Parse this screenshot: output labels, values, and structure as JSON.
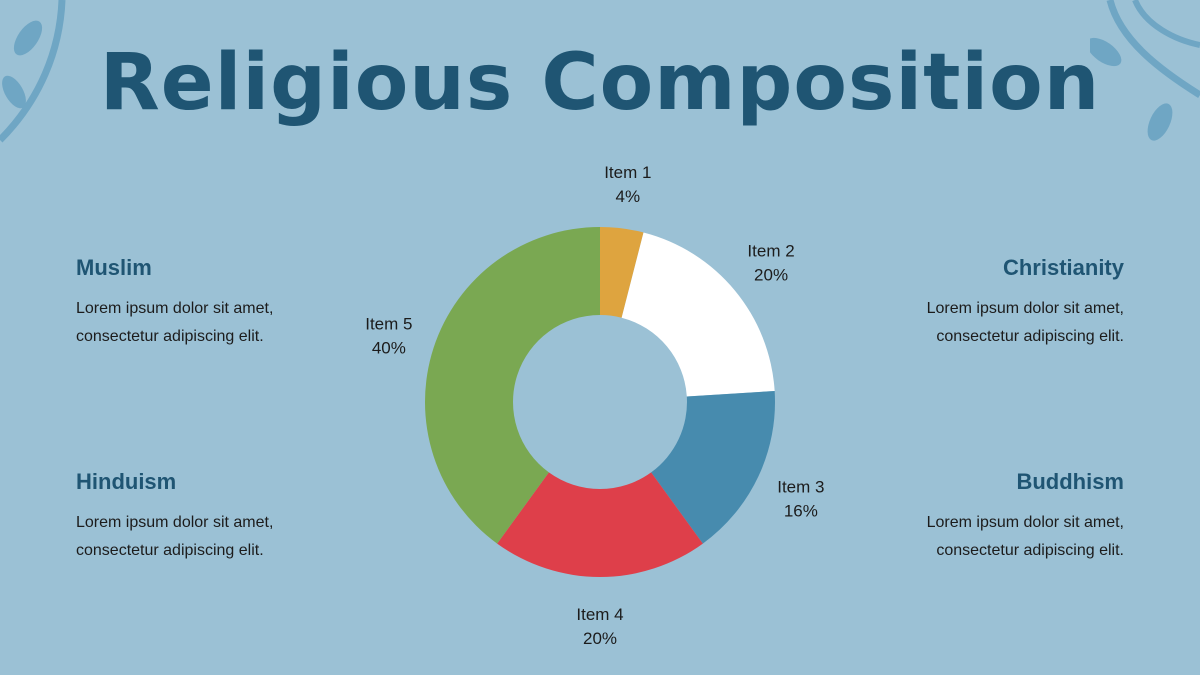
{
  "title": "Religious Composition",
  "blocks": [
    {
      "heading": "Muslim",
      "text": "Lorem ipsum dolor sit amet, consectetur adipiscing elit."
    },
    {
      "heading": "Christianity",
      "text": "Lorem ipsum dolor sit amet, consectetur adipiscing elit."
    },
    {
      "heading": "Hinduism",
      "text": "Lorem ipsum dolor sit amet, consectetur adipiscing elit."
    },
    {
      "heading": "Buddhism",
      "text": "Lorem ipsum dolor sit amet, consectetur adipiscing elit."
    }
  ],
  "chart_data": {
    "type": "pie",
    "donut": true,
    "categories": [
      "Item 1",
      "Item 2",
      "Item 3",
      "Item 4",
      "Item 5"
    ],
    "values": [
      4,
      20,
      16,
      20,
      40
    ],
    "value_labels": [
      "4%",
      "20%",
      "16%",
      "20%",
      "40%"
    ],
    "colors": [
      "#dea43f",
      "#ffffff",
      "#478bae",
      "#de3f4a",
      "#7aa852"
    ],
    "background": "#9bc1d5",
    "accent": "#1f5573"
  }
}
